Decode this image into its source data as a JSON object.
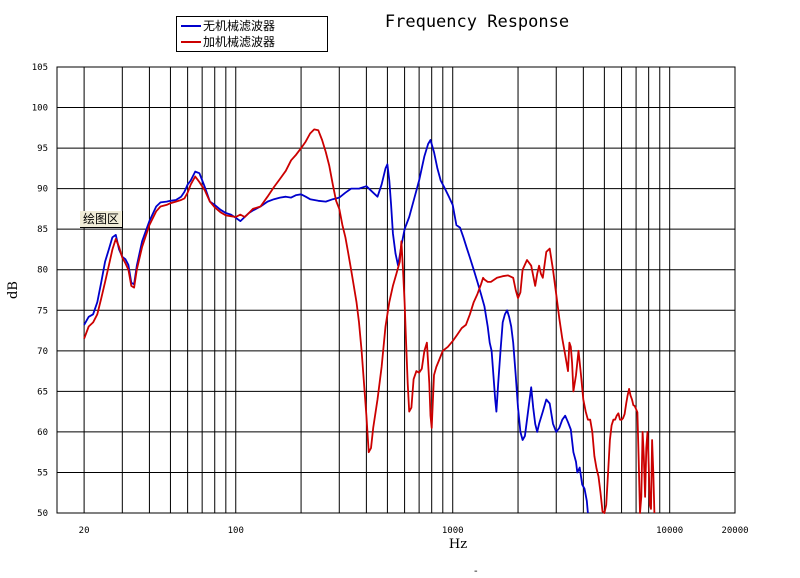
{
  "chart_data": {
    "type": "line",
    "title": "Frequency Response",
    "xlabel": "Hz",
    "ylabel": "dB",
    "xscale": "log",
    "xlim": [
      15,
      20000
    ],
    "ylim": [
      50,
      105
    ],
    "y_ticks": [
      "50",
      "55",
      "60",
      "65",
      "70",
      "75",
      "80",
      "85",
      "90",
      "95",
      "100",
      "105"
    ],
    "x_tick_labels": [
      {
        "value": 20,
        "label": "20"
      },
      {
        "value": 100,
        "label": "100"
      },
      {
        "value": 1000,
        "label": "1000"
      },
      {
        "value": 10000,
        "label": "10000"
      },
      {
        "value": 20000,
        "label": "20000"
      }
    ],
    "grid": true,
    "legend_position": "top-left",
    "series": [
      {
        "name": "无机械滤波器",
        "color": "#0000cc",
        "points": [
          [
            20,
            73.2
          ],
          [
            21,
            74.2
          ],
          [
            22,
            74.5
          ],
          [
            23,
            76
          ],
          [
            24,
            78.5
          ],
          [
            25,
            81
          ],
          [
            26,
            82.5
          ],
          [
            27,
            84
          ],
          [
            28,
            84.3
          ],
          [
            29,
            82.5
          ],
          [
            30,
            81.6
          ],
          [
            31,
            81.3
          ],
          [
            32,
            80.6
          ],
          [
            33,
            78.4
          ],
          [
            34,
            78.2
          ],
          [
            35,
            80.5
          ],
          [
            37,
            83.5
          ],
          [
            40,
            86
          ],
          [
            43,
            87.8
          ],
          [
            45,
            88.3
          ],
          [
            48,
            88.4
          ],
          [
            50,
            88.5
          ],
          [
            53,
            88.6
          ],
          [
            56,
            89
          ],
          [
            58,
            89.6
          ],
          [
            60,
            90.5
          ],
          [
            62,
            91
          ],
          [
            65,
            92.1
          ],
          [
            68,
            91.9
          ],
          [
            72,
            90.2
          ],
          [
            76,
            88.4
          ],
          [
            80,
            88
          ],
          [
            85,
            87.4
          ],
          [
            90,
            87
          ],
          [
            95,
            86.8
          ],
          [
            100,
            86.4
          ],
          [
            105,
            86
          ],
          [
            110,
            86.5
          ],
          [
            115,
            87
          ],
          [
            120,
            87.3
          ],
          [
            130,
            87.8
          ],
          [
            140,
            88.4
          ],
          [
            150,
            88.7
          ],
          [
            160,
            88.9
          ],
          [
            170,
            89
          ],
          [
            180,
            88.9
          ],
          [
            190,
            89.2
          ],
          [
            200,
            89.3
          ],
          [
            210,
            89
          ],
          [
            220,
            88.7
          ],
          [
            240,
            88.5
          ],
          [
            260,
            88.4
          ],
          [
            280,
            88.7
          ],
          [
            300,
            88.9
          ],
          [
            320,
            89.5
          ],
          [
            340,
            90
          ],
          [
            370,
            90
          ],
          [
            400,
            90.3
          ],
          [
            430,
            89.5
          ],
          [
            450,
            89
          ],
          [
            470,
            90.5
          ],
          [
            490,
            92.5
          ],
          [
            500,
            93
          ],
          [
            510,
            91
          ],
          [
            520,
            88
          ],
          [
            530,
            84.5
          ],
          [
            545,
            82
          ],
          [
            560,
            80.5
          ],
          [
            580,
            83
          ],
          [
            600,
            85
          ],
          [
            630,
            86.5
          ],
          [
            660,
            88.5
          ],
          [
            700,
            91
          ],
          [
            740,
            94
          ],
          [
            770,
            95.5
          ],
          [
            790,
            96
          ],
          [
            820,
            94.5
          ],
          [
            850,
            92.5
          ],
          [
            880,
            91
          ],
          [
            920,
            90
          ],
          [
            960,
            89
          ],
          [
            1000,
            88
          ],
          [
            1040,
            85.5
          ],
          [
            1080,
            85.2
          ],
          [
            1120,
            84
          ],
          [
            1160,
            82.7
          ],
          [
            1200,
            81.5
          ],
          [
            1250,
            80
          ],
          [
            1300,
            78.5
          ],
          [
            1350,
            77
          ],
          [
            1400,
            75.5
          ],
          [
            1450,
            73
          ],
          [
            1480,
            71
          ],
          [
            1510,
            70
          ],
          [
            1540,
            67
          ],
          [
            1570,
            64
          ],
          [
            1590,
            62.5
          ],
          [
            1620,
            66
          ],
          [
            1660,
            70
          ],
          [
            1700,
            73.5
          ],
          [
            1740,
            74.5
          ],
          [
            1780,
            75
          ],
          [
            1820,
            74.2
          ],
          [
            1860,
            73
          ],
          [
            1900,
            71
          ],
          [
            1950,
            67
          ],
          [
            2000,
            63
          ],
          [
            2050,
            60
          ],
          [
            2100,
            59
          ],
          [
            2150,
            59.5
          ],
          [
            2200,
            61.5
          ],
          [
            2260,
            64
          ],
          [
            2300,
            65.5
          ],
          [
            2350,
            63
          ],
          [
            2400,
            61
          ],
          [
            2450,
            60
          ],
          [
            2500,
            61
          ],
          [
            2600,
            62.5
          ],
          [
            2700,
            64
          ],
          [
            2800,
            63.5
          ],
          [
            2900,
            61
          ],
          [
            3000,
            60
          ],
          [
            3100,
            60.5
          ],
          [
            3200,
            61.5
          ],
          [
            3300,
            62
          ],
          [
            3400,
            61.2
          ],
          [
            3500,
            60.3
          ],
          [
            3600,
            57.5
          ],
          [
            3700,
            56.3
          ],
          [
            3750,
            55
          ],
          [
            3850,
            55.6
          ],
          [
            3950,
            53.5
          ],
          [
            4050,
            53
          ],
          [
            4150,
            51.5
          ],
          [
            4200,
            50
          ]
        ]
      },
      {
        "name": "加机械滤波器",
        "color": "#cc0000",
        "points": [
          [
            20,
            71.5
          ],
          [
            21,
            73
          ],
          [
            22,
            73.5
          ],
          [
            23,
            74.5
          ],
          [
            24,
            76.5
          ],
          [
            25,
            78.5
          ],
          [
            26,
            80.5
          ],
          [
            27,
            82.5
          ],
          [
            28,
            83.8
          ],
          [
            29,
            82.8
          ],
          [
            30,
            81.5
          ],
          [
            31,
            80.8
          ],
          [
            32,
            80
          ],
          [
            33,
            78
          ],
          [
            34,
            77.8
          ],
          [
            35,
            80
          ],
          [
            37,
            82.8
          ],
          [
            40,
            85.5
          ],
          [
            43,
            87.2
          ],
          [
            45,
            87.8
          ],
          [
            48,
            88
          ],
          [
            50,
            88.2
          ],
          [
            53,
            88.4
          ],
          [
            56,
            88.6
          ],
          [
            58,
            88.8
          ],
          [
            60,
            89.5
          ],
          [
            62,
            90.5
          ],
          [
            65,
            91.5
          ],
          [
            68,
            90.8
          ],
          [
            72,
            89.8
          ],
          [
            76,
            88.4
          ],
          [
            80,
            87.7
          ],
          [
            85,
            87.1
          ],
          [
            90,
            86.7
          ],
          [
            95,
            86.6
          ],
          [
            100,
            86.5
          ],
          [
            105,
            86.8
          ],
          [
            110,
            86.5
          ],
          [
            115,
            87
          ],
          [
            120,
            87.5
          ],
          [
            130,
            87.8
          ],
          [
            140,
            89
          ],
          [
            150,
            90.2
          ],
          [
            160,
            91.2
          ],
          [
            170,
            92.2
          ],
          [
            180,
            93.5
          ],
          [
            190,
            94.2
          ],
          [
            200,
            95
          ],
          [
            210,
            95.8
          ],
          [
            220,
            96.8
          ],
          [
            230,
            97.3
          ],
          [
            240,
            97.2
          ],
          [
            250,
            96
          ],
          [
            260,
            94.5
          ],
          [
            270,
            92.8
          ],
          [
            280,
            90.5
          ],
          [
            290,
            88.5
          ],
          [
            300,
            87.5
          ],
          [
            310,
            85.5
          ],
          [
            320,
            84
          ],
          [
            330,
            82
          ],
          [
            340,
            80
          ],
          [
            350,
            78
          ],
          [
            360,
            76
          ],
          [
            370,
            73.5
          ],
          [
            380,
            70
          ],
          [
            390,
            66
          ],
          [
            400,
            62
          ],
          [
            410,
            57.5
          ],
          [
            420,
            58
          ],
          [
            430,
            60.5
          ],
          [
            450,
            64
          ],
          [
            470,
            68
          ],
          [
            490,
            73
          ],
          [
            510,
            76
          ],
          [
            530,
            78
          ],
          [
            550,
            79.5
          ],
          [
            570,
            81
          ],
          [
            580,
            83.5
          ],
          [
            590,
            80
          ],
          [
            600,
            76
          ],
          [
            610,
            71
          ],
          [
            620,
            66
          ],
          [
            630,
            62.5
          ],
          [
            645,
            63
          ],
          [
            660,
            66.5
          ],
          [
            680,
            67.5
          ],
          [
            700,
            67.3
          ],
          [
            720,
            67.8
          ],
          [
            740,
            70
          ],
          [
            760,
            71
          ],
          [
            780,
            66
          ],
          [
            790,
            62
          ],
          [
            800,
            60.5
          ],
          [
            820,
            67
          ],
          [
            840,
            68
          ],
          [
            870,
            69
          ],
          [
            900,
            70
          ],
          [
            950,
            70.5
          ],
          [
            1000,
            71.2
          ],
          [
            1050,
            72
          ],
          [
            1100,
            72.8
          ],
          [
            1150,
            73.2
          ],
          [
            1200,
            74.5
          ],
          [
            1250,
            76
          ],
          [
            1300,
            77
          ],
          [
            1350,
            78.2
          ],
          [
            1380,
            79
          ],
          [
            1400,
            78.8
          ],
          [
            1450,
            78.5
          ],
          [
            1500,
            78.5
          ],
          [
            1600,
            79
          ],
          [
            1700,
            79.2
          ],
          [
            1800,
            79.3
          ],
          [
            1900,
            79
          ],
          [
            1950,
            77.5
          ],
          [
            2000,
            76.5
          ],
          [
            2050,
            77.2
          ],
          [
            2100,
            80
          ],
          [
            2200,
            81.2
          ],
          [
            2300,
            80.5
          ],
          [
            2400,
            78
          ],
          [
            2450,
            79.5
          ],
          [
            2500,
            80.5
          ],
          [
            2550,
            79.5
          ],
          [
            2600,
            79
          ],
          [
            2700,
            82.2
          ],
          [
            2800,
            82.6
          ],
          [
            2900,
            80
          ],
          [
            3000,
            77
          ],
          [
            3100,
            74
          ],
          [
            3200,
            71.5
          ],
          [
            3300,
            69.5
          ],
          [
            3400,
            67.5
          ],
          [
            3450,
            71
          ],
          [
            3500,
            70.5
          ],
          [
            3550,
            68.5
          ],
          [
            3600,
            65
          ],
          [
            3700,
            67
          ],
          [
            3800,
            70
          ],
          [
            3900,
            67
          ],
          [
            4000,
            64
          ],
          [
            4100,
            62.5
          ],
          [
            4200,
            61.5
          ],
          [
            4300,
            61.5
          ],
          [
            4400,
            60
          ],
          [
            4500,
            57
          ],
          [
            4600,
            55.5
          ],
          [
            4700,
            54.5
          ],
          [
            4800,
            52.5
          ],
          [
            4900,
            50.2
          ],
          [
            5000,
            50
          ],
          [
            5100,
            51
          ],
          [
            5200,
            55
          ],
          [
            5300,
            59
          ],
          [
            5400,
            60.8
          ],
          [
            5500,
            61.5
          ],
          [
            5600,
            61.5
          ],
          [
            5700,
            62
          ],
          [
            5800,
            62.3
          ],
          [
            5900,
            61.5
          ],
          [
            6000,
            61.5
          ],
          [
            6100,
            61.7
          ],
          [
            6200,
            62.2
          ],
          [
            6300,
            63.5
          ],
          [
            6400,
            64.5
          ],
          [
            6500,
            65.3
          ],
          [
            6600,
            64.5
          ],
          [
            6700,
            64
          ],
          [
            6800,
            63.3
          ],
          [
            6900,
            63.2
          ],
          [
            7000,
            62.8
          ],
          [
            7100,
            62.4
          ],
          [
            7200,
            56.5
          ],
          [
            7300,
            50
          ],
          [
            7400,
            52
          ],
          [
            7500,
            60
          ],
          [
            7600,
            57
          ],
          [
            7700,
            52
          ],
          [
            7800,
            58
          ],
          [
            7900,
            60
          ],
          [
            8000,
            56
          ],
          [
            8100,
            51
          ],
          [
            8200,
            50.5
          ],
          [
            8300,
            59
          ],
          [
            8400,
            55
          ],
          [
            8500,
            50
          ]
        ]
      }
    ]
  },
  "ui": {
    "area_label": "绘图区",
    "bottom_mark": "-"
  }
}
